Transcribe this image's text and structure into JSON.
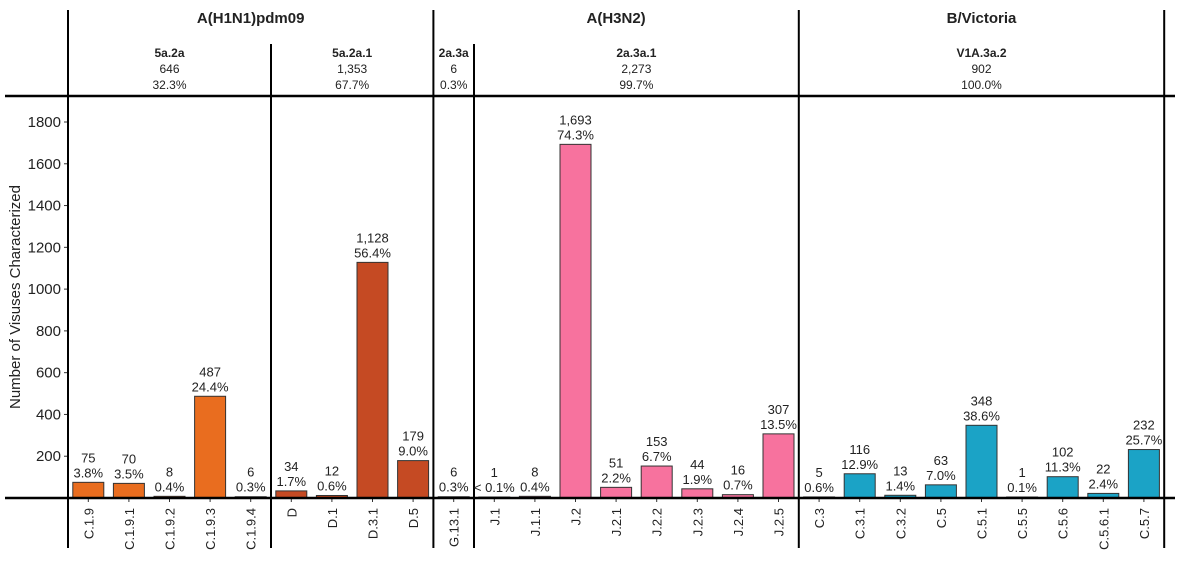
{
  "chart_data": {
    "type": "bar",
    "ylabel": "Number of Visuses Characterized",
    "ylim": [
      0,
      1850
    ],
    "yticks": [
      200,
      400,
      600,
      800,
      1000,
      1200,
      1400,
      1600,
      1800
    ],
    "grid": false,
    "groups": [
      {
        "name": "A(H1N1)pdm09",
        "subclades": [
          {
            "name": "5a.2a",
            "count": "646",
            "pct": "32.3%",
            "color": "#E96D1F",
            "bars": [
              {
                "label": "C.1.9",
                "value": 75,
                "text": "75",
                "pct": "3.8%"
              },
              {
                "label": "C.1.9.1",
                "value": 70,
                "text": "70",
                "pct": "3.5%"
              },
              {
                "label": "C.1.9.2",
                "value": 8,
                "text": "8",
                "pct": "0.4%"
              },
              {
                "label": "C.1.9.3",
                "value": 487,
                "text": "487",
                "pct": "24.4%"
              },
              {
                "label": "C.1.9.4",
                "value": 6,
                "text": "6",
                "pct": "0.3%"
              }
            ]
          },
          {
            "name": "5a.2a.1",
            "count": "1,353",
            "pct": "67.7%",
            "color": "#C54A23",
            "bars": [
              {
                "label": "D",
                "value": 34,
                "text": "34",
                "pct": "1.7%"
              },
              {
                "label": "D.1",
                "value": 12,
                "text": "12",
                "pct": "0.6%"
              },
              {
                "label": "D.3.1",
                "value": 1128,
                "text": "1,128",
                "pct": "56.4%"
              },
              {
                "label": "D.5",
                "value": 179,
                "text": "179",
                "pct": "9.0%"
              }
            ]
          }
        ]
      },
      {
        "name": "A(H3N2)",
        "subclades": [
          {
            "name": "2a.3a",
            "count": "6",
            "pct": "0.3%",
            "color": "#F7729E",
            "bars": [
              {
                "label": "G.13.1",
                "value": 6,
                "text": "6",
                "pct": "0.3%"
              }
            ]
          },
          {
            "name": "2a.3a.1",
            "count": "2,273",
            "pct": "99.7%",
            "color": "#F7729E",
            "bars": [
              {
                "label": "J.1",
                "value": 1,
                "text": "1",
                "pct": "< 0.1%"
              },
              {
                "label": "J.1.1",
                "value": 8,
                "text": "8",
                "pct": "0.4%"
              },
              {
                "label": "J.2",
                "value": 1693,
                "text": "1,693",
                "pct": "74.3%"
              },
              {
                "label": "J.2.1",
                "value": 51,
                "text": "51",
                "pct": "2.2%"
              },
              {
                "label": "J.2.2",
                "value": 153,
                "text": "153",
                "pct": "6.7%"
              },
              {
                "label": "J.2.3",
                "value": 44,
                "text": "44",
                "pct": "1.9%"
              },
              {
                "label": "J.2.4",
                "value": 16,
                "text": "16",
                "pct": "0.7%"
              },
              {
                "label": "J.2.5",
                "value": 307,
                "text": "307",
                "pct": "13.5%"
              }
            ]
          }
        ]
      },
      {
        "name": "B/Victoria",
        "subclades": [
          {
            "name": "V1A.3a.2",
            "count": "902",
            "pct": "100.0%",
            "color": "#1BA3C6",
            "bars": [
              {
                "label": "C.3",
                "value": 5,
                "text": "5",
                "pct": "0.6%"
              },
              {
                "label": "C.3.1",
                "value": 116,
                "text": "116",
                "pct": "12.9%"
              },
              {
                "label": "C.3.2",
                "value": 13,
                "text": "13",
                "pct": "1.4%"
              },
              {
                "label": "C.5",
                "value": 63,
                "text": "63",
                "pct": "7.0%"
              },
              {
                "label": "C.5.1",
                "value": 348,
                "text": "348",
                "pct": "38.6%"
              },
              {
                "label": "C.5.5",
                "value": 1,
                "text": "1",
                "pct": "0.1%"
              },
              {
                "label": "C.5.6",
                "value": 102,
                "text": "102",
                "pct": "11.3%"
              },
              {
                "label": "C.5.6.1",
                "value": 22,
                "text": "22",
                "pct": "2.4%"
              },
              {
                "label": "C.5.7",
                "value": 232,
                "text": "232",
                "pct": "25.7%"
              }
            ]
          }
        ]
      }
    ]
  }
}
